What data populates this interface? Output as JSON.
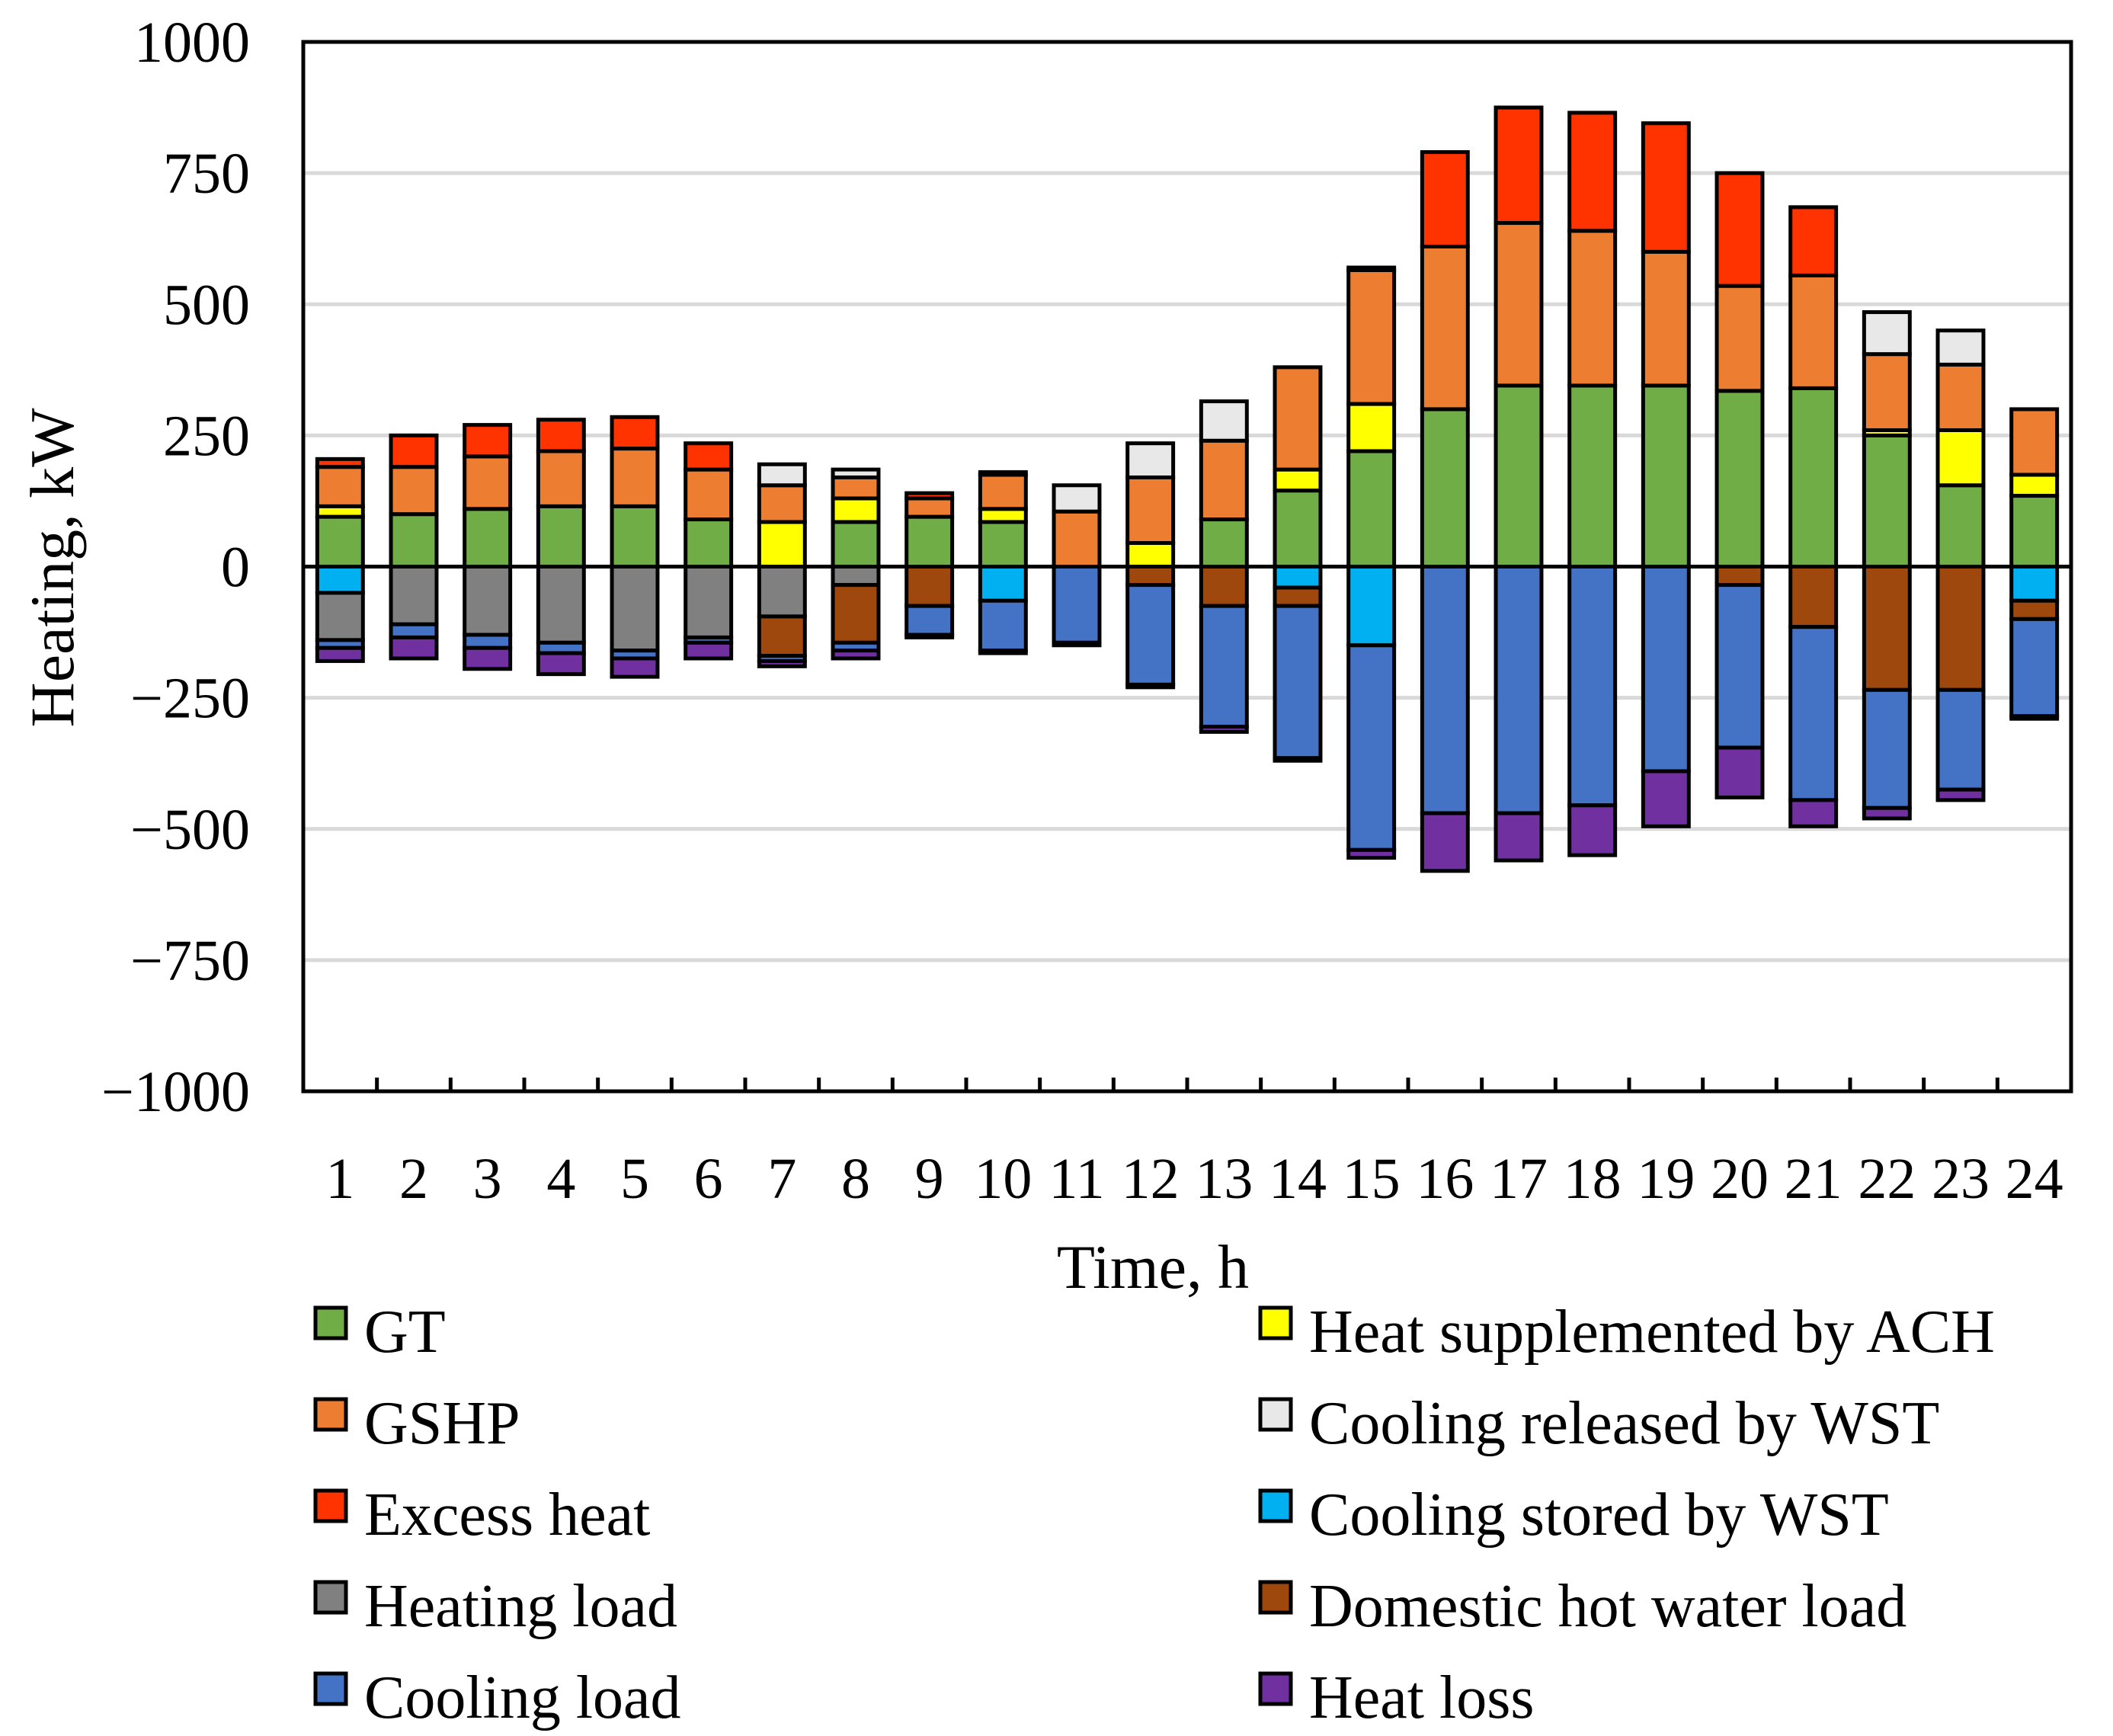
{
  "chart_data": {
    "type": "bar",
    "stacked": true,
    "xlabel": "Time, h",
    "ylabel": "Heating, kW",
    "ylim": [
      -1000,
      1000
    ],
    "yticks": [
      1000,
      750,
      500,
      250,
      0,
      -250,
      -500,
      -750,
      -1000
    ],
    "ytick_labels": [
      "1000",
      "750",
      "500",
      "250",
      "0",
      "−250",
      "−500",
      "−750",
      "−1000"
    ],
    "grid": true,
    "legend_position": "bottom",
    "categories": [
      "1",
      "2",
      "3",
      "4",
      "5",
      "6",
      "7",
      "8",
      "9",
      "10",
      "11",
      "12",
      "13",
      "14",
      "15",
      "16",
      "17",
      "18",
      "19",
      "20",
      "21",
      "22",
      "23",
      "24"
    ],
    "positive_series": [
      {
        "name": "GT",
        "color": "#70AD47",
        "values": [
          95,
          100,
          110,
          115,
          115,
          90,
          0,
          85,
          95,
          85,
          0,
          0,
          90,
          145,
          220,
          300,
          345,
          345,
          345,
          335,
          340,
          250,
          155,
          135
        ]
      },
      {
        "name": "Heat supplemented by ACH",
        "color": "#FFFF00",
        "values": [
          20,
          0,
          0,
          0,
          0,
          0,
          85,
          45,
          0,
          25,
          0,
          45,
          0,
          40,
          90,
          0,
          0,
          0,
          0,
          0,
          0,
          10,
          105,
          40
        ]
      },
      {
        "name": "GSHP",
        "color": "#ED7D31",
        "values": [
          75,
          90,
          100,
          105,
          110,
          95,
          70,
          40,
          35,
          65,
          105,
          125,
          150,
          195,
          255,
          310,
          310,
          295,
          255,
          200,
          215,
          145,
          125,
          125
        ]
      },
      {
        "name": "Cooling released by WST",
        "color": "#E8E8E8",
        "values": [
          0,
          0,
          0,
          0,
          0,
          0,
          40,
          15,
          0,
          0,
          50,
          65,
          75,
          0,
          0,
          0,
          0,
          0,
          0,
          0,
          0,
          80,
          65,
          0
        ]
      },
      {
        "name": "Excess heat",
        "color": "#FF3300",
        "values": [
          15,
          60,
          60,
          60,
          60,
          50,
          0,
          0,
          10,
          5,
          0,
          0,
          0,
          0,
          5,
          180,
          220,
          225,
          245,
          215,
          130,
          0,
          0,
          0
        ]
      }
    ],
    "negative_series": [
      {
        "name": "Cooling stored by WST",
        "color": "#00B0F0",
        "values": [
          -50,
          0,
          0,
          0,
          0,
          0,
          0,
          0,
          0,
          -65,
          0,
          0,
          0,
          -40,
          -150,
          0,
          0,
          0,
          0,
          0,
          0,
          0,
          0,
          -65
        ]
      },
      {
        "name": "Heating load",
        "color": "#808080",
        "values": [
          -90,
          -110,
          -130,
          -145,
          -160,
          -135,
          -95,
          -35,
          0,
          0,
          0,
          0,
          0,
          0,
          0,
          0,
          0,
          0,
          0,
          0,
          0,
          0,
          0,
          0
        ]
      },
      {
        "name": "Domestic hot water load",
        "color": "#9E480E",
        "values": [
          0,
          0,
          0,
          0,
          0,
          0,
          -75,
          -110,
          -75,
          0,
          0,
          -35,
          -75,
          -35,
          0,
          0,
          0,
          0,
          0,
          -35,
          -115,
          -235,
          -235,
          -35
        ]
      },
      {
        "name": "Cooling load",
        "color": "#4472C4",
        "values": [
          -15,
          -25,
          -25,
          -20,
          -15,
          -10,
          -10,
          -15,
          -55,
          -95,
          -145,
          -190,
          -230,
          -290,
          -390,
          -470,
          -470,
          -455,
          -390,
          -310,
          -330,
          -225,
          -190,
          -185
        ]
      },
      {
        "name": "Heat loss",
        "color": "#7030A0",
        "values": [
          -25,
          -40,
          -40,
          -40,
          -35,
          -30,
          -10,
          -15,
          -5,
          -5,
          -5,
          -5,
          -10,
          -5,
          -15,
          -110,
          -90,
          -95,
          -105,
          -95,
          -50,
          -20,
          -20,
          -5
        ]
      }
    ],
    "legend_left": [
      "GT",
      "GSHP",
      "Excess heat",
      "Heating load",
      "Cooling load"
    ],
    "legend_right": [
      "Heat supplemented by ACH",
      "Cooling released by WST",
      "Cooling stored by WST",
      "Domestic hot water load",
      "Heat loss"
    ]
  }
}
